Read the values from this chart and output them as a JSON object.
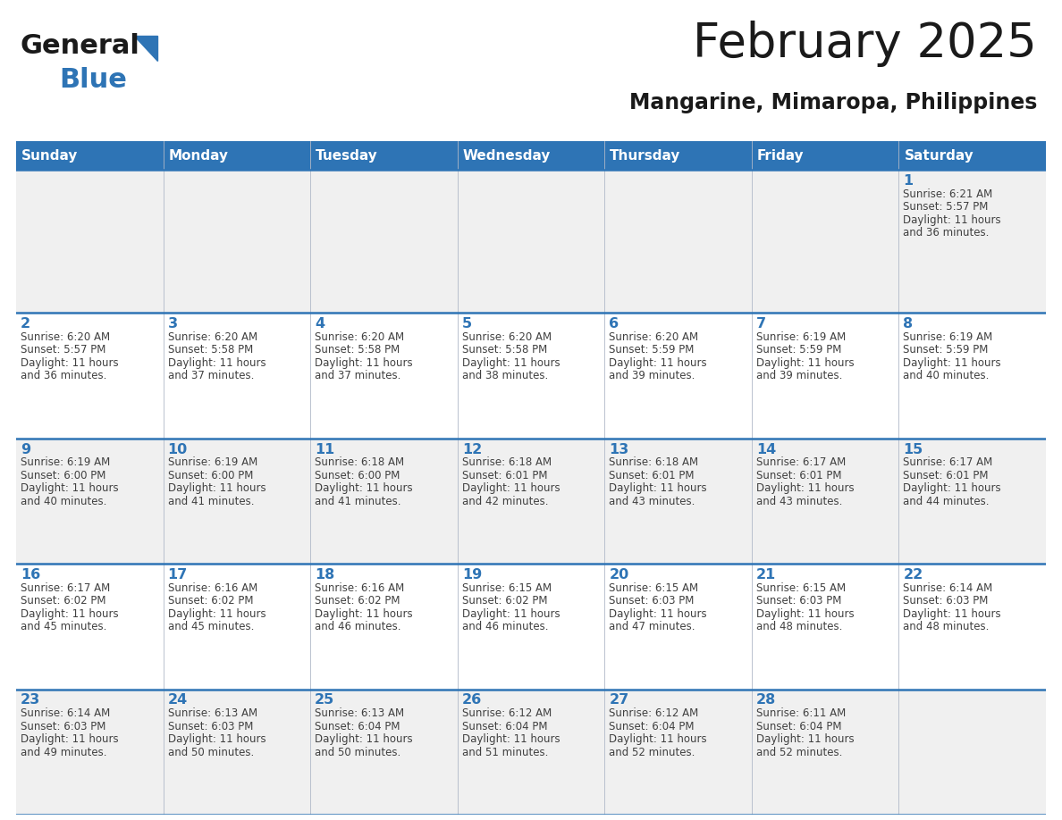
{
  "title": "February 2025",
  "subtitle": "Mangarine, Mimaropa, Philippines",
  "days_of_week": [
    "Sunday",
    "Monday",
    "Tuesday",
    "Wednesday",
    "Thursday",
    "Friday",
    "Saturday"
  ],
  "header_bg": "#2e74b5",
  "header_text": "#ffffff",
  "row_bg_even": "#f0f0f0",
  "row_bg_odd": "#ffffff",
  "cell_border": "#2e74b5",
  "day_num_color": "#2e74b5",
  "cell_text_color": "#404040",
  "title_color": "#1a1a1a",
  "subtitle_color": "#1a1a1a",
  "logo_general_color": "#1a1a1a",
  "logo_blue_color": "#2e74b5",
  "logo_triangle_color": "#2e74b5",
  "calendar_data": [
    {
      "day": 1,
      "col": 6,
      "row": 0,
      "sunrise": "6:21 AM",
      "sunset": "5:57 PM",
      "daylight_line1": "Daylight: 11 hours",
      "daylight_line2": "and 36 minutes."
    },
    {
      "day": 2,
      "col": 0,
      "row": 1,
      "sunrise": "6:20 AM",
      "sunset": "5:57 PM",
      "daylight_line1": "Daylight: 11 hours",
      "daylight_line2": "and 36 minutes."
    },
    {
      "day": 3,
      "col": 1,
      "row": 1,
      "sunrise": "6:20 AM",
      "sunset": "5:58 PM",
      "daylight_line1": "Daylight: 11 hours",
      "daylight_line2": "and 37 minutes."
    },
    {
      "day": 4,
      "col": 2,
      "row": 1,
      "sunrise": "6:20 AM",
      "sunset": "5:58 PM",
      "daylight_line1": "Daylight: 11 hours",
      "daylight_line2": "and 37 minutes."
    },
    {
      "day": 5,
      "col": 3,
      "row": 1,
      "sunrise": "6:20 AM",
      "sunset": "5:58 PM",
      "daylight_line1": "Daylight: 11 hours",
      "daylight_line2": "and 38 minutes."
    },
    {
      "day": 6,
      "col": 4,
      "row": 1,
      "sunrise": "6:20 AM",
      "sunset": "5:59 PM",
      "daylight_line1": "Daylight: 11 hours",
      "daylight_line2": "and 39 minutes."
    },
    {
      "day": 7,
      "col": 5,
      "row": 1,
      "sunrise": "6:19 AM",
      "sunset": "5:59 PM",
      "daylight_line1": "Daylight: 11 hours",
      "daylight_line2": "and 39 minutes."
    },
    {
      "day": 8,
      "col": 6,
      "row": 1,
      "sunrise": "6:19 AM",
      "sunset": "5:59 PM",
      "daylight_line1": "Daylight: 11 hours",
      "daylight_line2": "and 40 minutes."
    },
    {
      "day": 9,
      "col": 0,
      "row": 2,
      "sunrise": "6:19 AM",
      "sunset": "6:00 PM",
      "daylight_line1": "Daylight: 11 hours",
      "daylight_line2": "and 40 minutes."
    },
    {
      "day": 10,
      "col": 1,
      "row": 2,
      "sunrise": "6:19 AM",
      "sunset": "6:00 PM",
      "daylight_line1": "Daylight: 11 hours",
      "daylight_line2": "and 41 minutes."
    },
    {
      "day": 11,
      "col": 2,
      "row": 2,
      "sunrise": "6:18 AM",
      "sunset": "6:00 PM",
      "daylight_line1": "Daylight: 11 hours",
      "daylight_line2": "and 41 minutes."
    },
    {
      "day": 12,
      "col": 3,
      "row": 2,
      "sunrise": "6:18 AM",
      "sunset": "6:01 PM",
      "daylight_line1": "Daylight: 11 hours",
      "daylight_line2": "and 42 minutes."
    },
    {
      "day": 13,
      "col": 4,
      "row": 2,
      "sunrise": "6:18 AM",
      "sunset": "6:01 PM",
      "daylight_line1": "Daylight: 11 hours",
      "daylight_line2": "and 43 minutes."
    },
    {
      "day": 14,
      "col": 5,
      "row": 2,
      "sunrise": "6:17 AM",
      "sunset": "6:01 PM",
      "daylight_line1": "Daylight: 11 hours",
      "daylight_line2": "and 43 minutes."
    },
    {
      "day": 15,
      "col": 6,
      "row": 2,
      "sunrise": "6:17 AM",
      "sunset": "6:01 PM",
      "daylight_line1": "Daylight: 11 hours",
      "daylight_line2": "and 44 minutes."
    },
    {
      "day": 16,
      "col": 0,
      "row": 3,
      "sunrise": "6:17 AM",
      "sunset": "6:02 PM",
      "daylight_line1": "Daylight: 11 hours",
      "daylight_line2": "and 45 minutes."
    },
    {
      "day": 17,
      "col": 1,
      "row": 3,
      "sunrise": "6:16 AM",
      "sunset": "6:02 PM",
      "daylight_line1": "Daylight: 11 hours",
      "daylight_line2": "and 45 minutes."
    },
    {
      "day": 18,
      "col": 2,
      "row": 3,
      "sunrise": "6:16 AM",
      "sunset": "6:02 PM",
      "daylight_line1": "Daylight: 11 hours",
      "daylight_line2": "and 46 minutes."
    },
    {
      "day": 19,
      "col": 3,
      "row": 3,
      "sunrise": "6:15 AM",
      "sunset": "6:02 PM",
      "daylight_line1": "Daylight: 11 hours",
      "daylight_line2": "and 46 minutes."
    },
    {
      "day": 20,
      "col": 4,
      "row": 3,
      "sunrise": "6:15 AM",
      "sunset": "6:03 PM",
      "daylight_line1": "Daylight: 11 hours",
      "daylight_line2": "and 47 minutes."
    },
    {
      "day": 21,
      "col": 5,
      "row": 3,
      "sunrise": "6:15 AM",
      "sunset": "6:03 PM",
      "daylight_line1": "Daylight: 11 hours",
      "daylight_line2": "and 48 minutes."
    },
    {
      "day": 22,
      "col": 6,
      "row": 3,
      "sunrise": "6:14 AM",
      "sunset": "6:03 PM",
      "daylight_line1": "Daylight: 11 hours",
      "daylight_line2": "and 48 minutes."
    },
    {
      "day": 23,
      "col": 0,
      "row": 4,
      "sunrise": "6:14 AM",
      "sunset": "6:03 PM",
      "daylight_line1": "Daylight: 11 hours",
      "daylight_line2": "and 49 minutes."
    },
    {
      "day": 24,
      "col": 1,
      "row": 4,
      "sunrise": "6:13 AM",
      "sunset": "6:03 PM",
      "daylight_line1": "Daylight: 11 hours",
      "daylight_line2": "and 50 minutes."
    },
    {
      "day": 25,
      "col": 2,
      "row": 4,
      "sunrise": "6:13 AM",
      "sunset": "6:04 PM",
      "daylight_line1": "Daylight: 11 hours",
      "daylight_line2": "and 50 minutes."
    },
    {
      "day": 26,
      "col": 3,
      "row": 4,
      "sunrise": "6:12 AM",
      "sunset": "6:04 PM",
      "daylight_line1": "Daylight: 11 hours",
      "daylight_line2": "and 51 minutes."
    },
    {
      "day": 27,
      "col": 4,
      "row": 4,
      "sunrise": "6:12 AM",
      "sunset": "6:04 PM",
      "daylight_line1": "Daylight: 11 hours",
      "daylight_line2": "and 52 minutes."
    },
    {
      "day": 28,
      "col": 5,
      "row": 4,
      "sunrise": "6:11 AM",
      "sunset": "6:04 PM",
      "daylight_line1": "Daylight: 11 hours",
      "daylight_line2": "and 52 minutes."
    }
  ]
}
